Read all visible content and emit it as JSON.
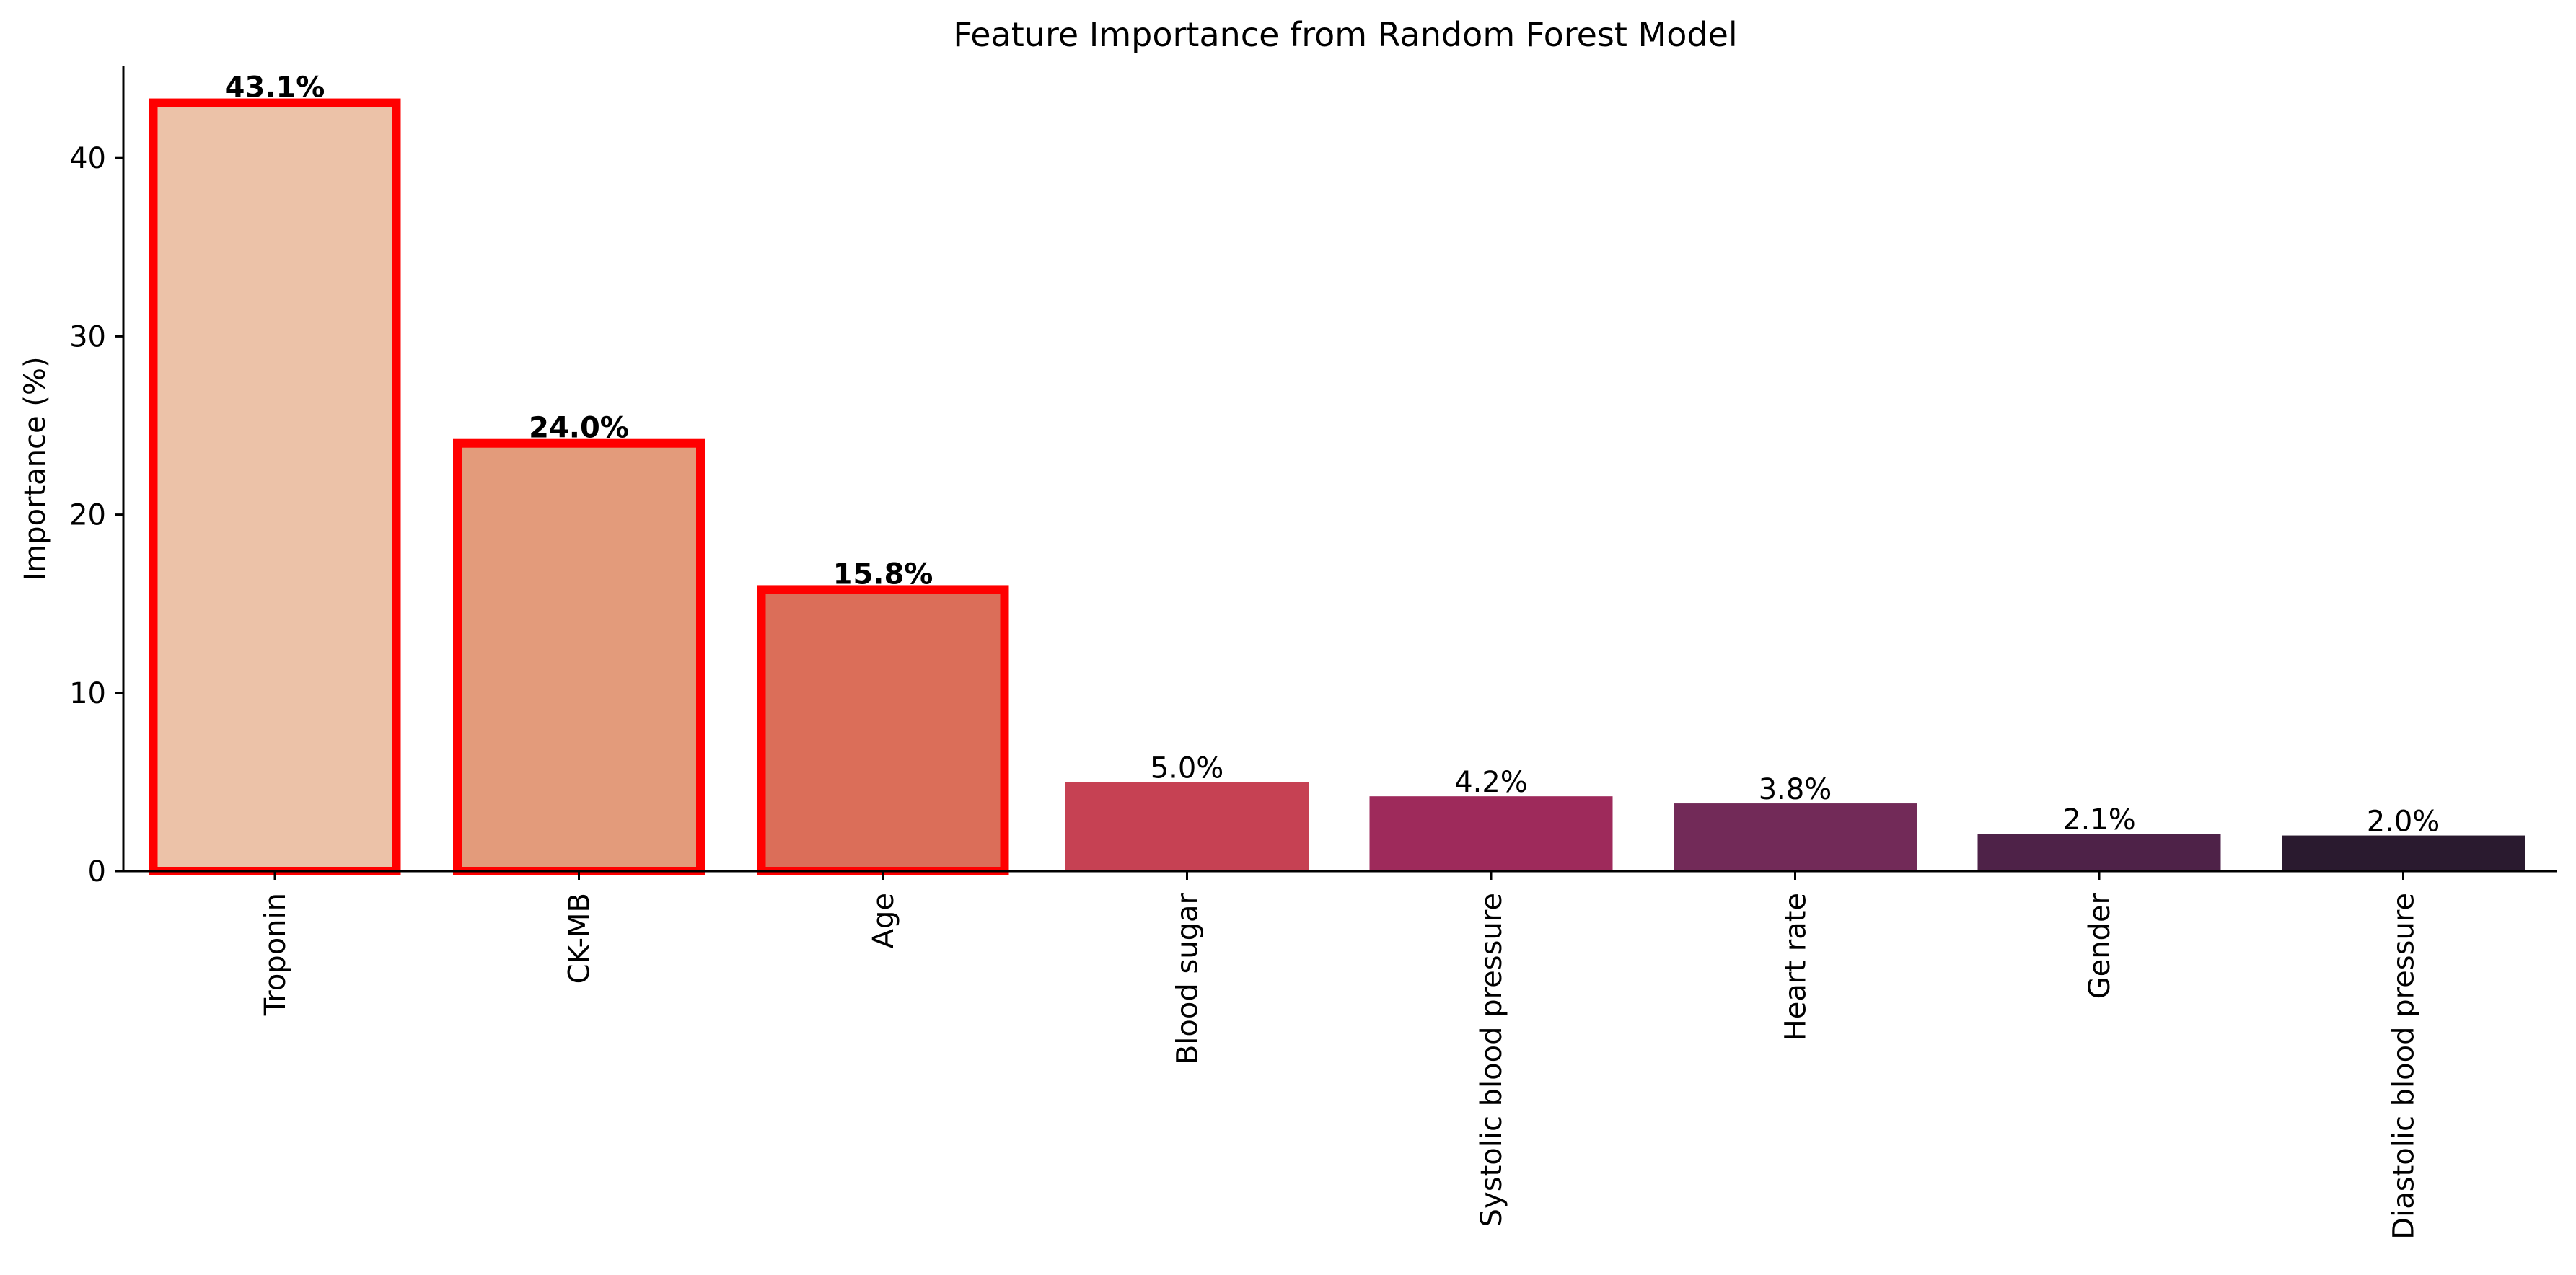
{
  "chart_data": {
    "type": "bar",
    "title": "Feature Importance from Random Forest Model",
    "xlabel": "",
    "ylabel": "Importance (%)",
    "ylim": [
      0,
      45.3
    ],
    "yticks": [
      0,
      10,
      20,
      30,
      40
    ],
    "grid": false,
    "categories": [
      "Troponin",
      "CK-MB",
      "Age",
      "Blood sugar",
      "Systolic blood pressure",
      "Heart rate",
      "Gender",
      "Diastolic blood pressure"
    ],
    "values": [
      43.1,
      24.0,
      15.8,
      5.0,
      4.2,
      3.8,
      2.1,
      2.0
    ],
    "value_labels": [
      "43.1%",
      "24.0%",
      "15.8%",
      "5.0%",
      "4.2%",
      "3.8%",
      "2.1%",
      "2.0%"
    ],
    "highlighted": [
      true,
      true,
      true,
      false,
      false,
      false,
      false,
      false
    ],
    "colors": [
      "#ecc2a8",
      "#e39b7b",
      "#db6e59",
      "#c64153",
      "#9e2a5b",
      "#722a58",
      "#4e2248",
      "#2a1a2f"
    ],
    "highlight_color": "#ff0000"
  }
}
